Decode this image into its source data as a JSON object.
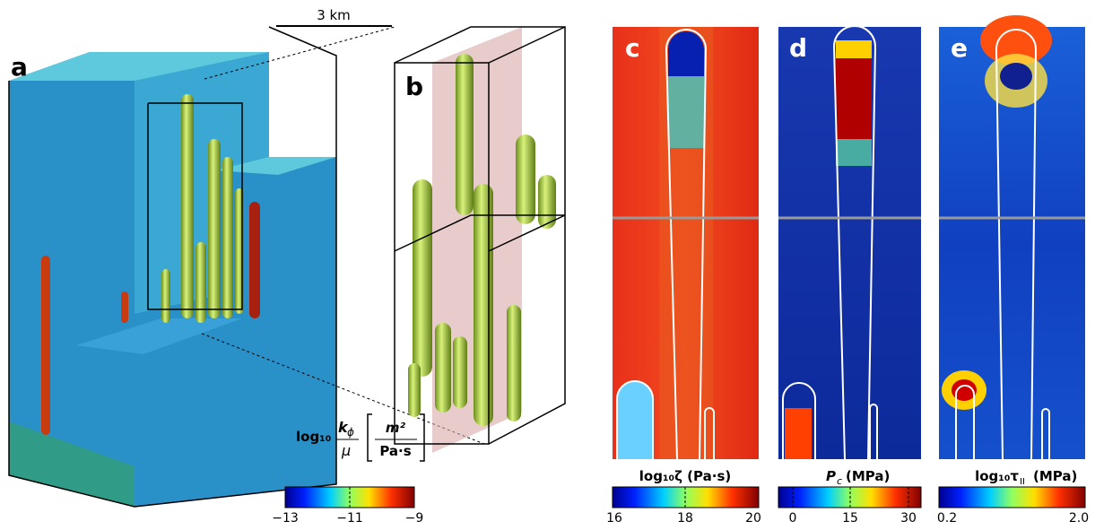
{
  "scale_bar": "3 km",
  "panels": {
    "a": "a",
    "b": "b",
    "c": "c",
    "d": "d",
    "e": "e"
  },
  "colorbars": {
    "a": {
      "prefix": "log₁₀",
      "numerator": "k",
      "numerator_sub": "ϕ",
      "denominator": "μ",
      "unit_numerator": "m²",
      "unit_denominator": "Pa·s",
      "ticks": [
        "−13",
        "−11",
        "−9"
      ]
    },
    "c": {
      "label": "log₁₀ζ (Pa·s)",
      "ticks": [
        "16",
        "18",
        "20"
      ]
    },
    "d": {
      "symbol": "P",
      "symbol_sub": "c",
      "unit": "(MPa)",
      "ticks": [
        "0",
        "15",
        "30"
      ]
    },
    "e": {
      "symbol": "log₁₀τ",
      "symbol_sub": "II",
      "unit": "(MPa)",
      "ticks": [
        "0.2",
        "2.0"
      ]
    }
  }
}
